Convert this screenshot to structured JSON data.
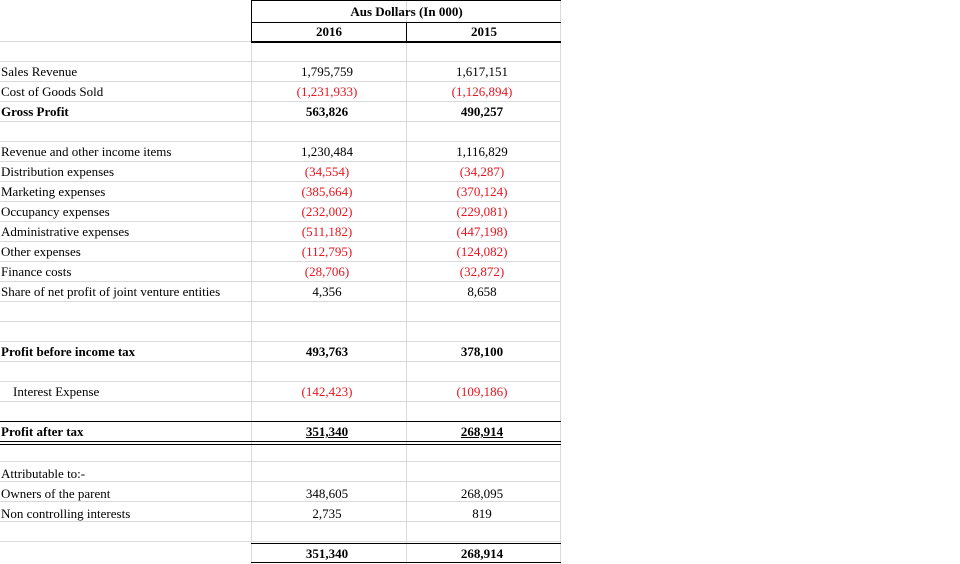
{
  "header": {
    "title": "Aus Dollars (In 000)",
    "year_a": "2016",
    "year_b": "2015"
  },
  "rows": {
    "sales_revenue": {
      "label": "Sales Revenue",
      "v2016": "1,795,759",
      "v2015": "1,617,151"
    },
    "cogs": {
      "label": "Cost of Goods Sold",
      "v2016": "(1,231,933)",
      "v2015": "(1,126,894)"
    },
    "gross_profit": {
      "label": "Gross Profit",
      "v2016": "563,826",
      "v2015": "490,257"
    },
    "revenue_other": {
      "label": "Revenue and other income items",
      "v2016": "1,230,484",
      "v2015": "1,116,829"
    },
    "distribution": {
      "label": "Distribution expenses",
      "v2016": "(34,554)",
      "v2015": "(34,287)"
    },
    "marketing": {
      "label": "Marketing expenses",
      "v2016": "(385,664)",
      "v2015": "(370,124)"
    },
    "occupancy": {
      "label": "Occupancy expenses",
      "v2016": "(232,002)",
      "v2015": "(229,081)"
    },
    "administrative": {
      "label": "Administrative expenses",
      "v2016": "(511,182)",
      "v2015": "(447,198)"
    },
    "other_expenses": {
      "label": "Other expenses",
      "v2016": "(112,795)",
      "v2015": "(124,082)"
    },
    "finance_costs": {
      "label": "Finance costs",
      "v2016": "(28,706)",
      "v2015": "(32,872)"
    },
    "jv_share": {
      "label": "Share of net profit of joint venture entities",
      "v2016": "4,356",
      "v2015": "8,658"
    },
    "pbt": {
      "label": "Profit before income tax",
      "v2016": "493,763",
      "v2015": "378,100"
    },
    "interest": {
      "label": "Interest Expense",
      "v2016": "(142,423)",
      "v2015": "(109,186)"
    },
    "pat": {
      "label": "Profit after tax",
      "v2016": "351,340",
      "v2015": "268,914"
    },
    "attributable": {
      "label": "Attributable to:-"
    },
    "owners": {
      "label": "Owners of the parent",
      "v2016": "348,605",
      "v2015": "268,095"
    },
    "nci": {
      "label": "Non controlling interests",
      "v2016": "2,735",
      "v2015": "819"
    },
    "total": {
      "v2016": "351,340",
      "v2015": "268,914"
    }
  },
  "colors": {
    "negative": "#e8141e",
    "gridline": "#d9d9d9"
  }
}
